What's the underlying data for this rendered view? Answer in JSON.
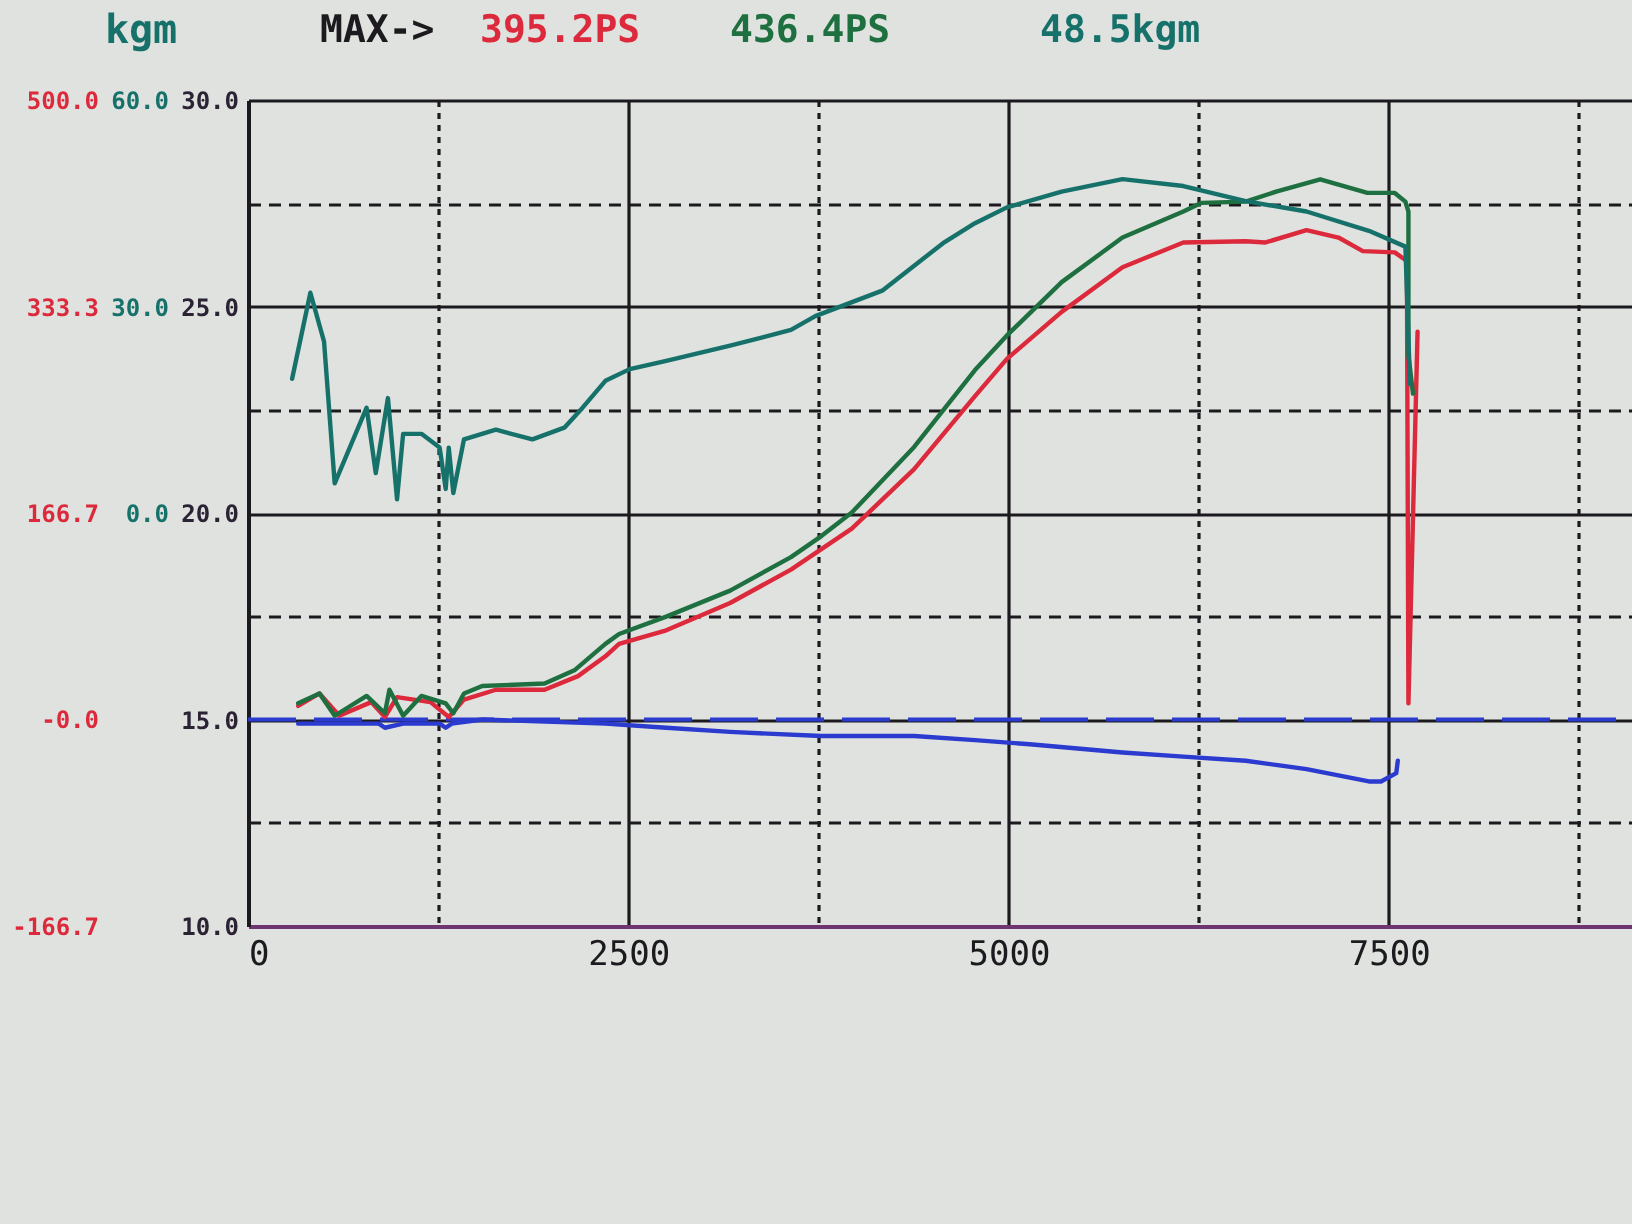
{
  "chart_data": {
    "type": "line",
    "annotations": [
      "MAX->",
      "395.2PS",
      "436.4PS",
      "48.5kgm"
    ],
    "y3label": "kgm",
    "xlim": [
      0,
      9100
    ],
    "xticks": [
      0,
      {
        "value": 1250,
        "label": null
      },
      2500,
      {
        "value": 3750,
        "label": null
      },
      5000,
      {
        "value": 6250,
        "label": null
      },
      7500,
      {
        "value": 8750,
        "label": null
      }
    ],
    "ylim": [
      10,
      30
    ],
    "yticks": [
      {
        "value": 10,
        "label": "10.0"
      },
      {
        "value": 12.5,
        "label": null
      },
      {
        "value": 15,
        "label": "15.0"
      },
      {
        "value": 17.5,
        "label": null
      },
      {
        "value": 20,
        "label": "20.0"
      },
      {
        "value": 22.5,
        "label": null
      },
      {
        "value": 25,
        "label": "25.0"
      },
      {
        "value": 27.5,
        "label": null
      },
      {
        "value": 30,
        "label": "30.0"
      }
    ],
    "y2lim": [
      -166.7,
      500
    ],
    "y2ticks": [
      {
        "value": -166.7,
        "label": "-166.7"
      },
      {
        "value": 0,
        "label": "-0.0"
      },
      {
        "value": 166.7,
        "label": "166.7"
      },
      {
        "value": 333.3,
        "label": "333.3"
      },
      {
        "value": 500,
        "label": "500.0"
      }
    ],
    "y3lim": [
      -60,
      60
    ],
    "y3ticks": [
      {
        "value": 0,
        "label": "0.0"
      },
      {
        "value": 30,
        "label": "30.0"
      },
      {
        "value": 60,
        "label": "60.0"
      }
    ],
    "grid": true,
    "ref_lines": [
      {
        "axis": "y",
        "value": 15,
        "color": "#2b3bd0",
        "line_style": "dashed"
      }
    ],
    "series": [
      {
        "color": "#dc2a3c",
        "axis": "y2",
        "x": [
          330,
          470,
          600,
          810,
          900,
          980,
          1200,
          1320,
          1420,
          1630,
          1950,
          2170,
          2350,
          2440,
          2750,
          3170,
          3570,
          3970,
          4380,
          4780,
          4990,
          5350,
          5750,
          6150,
          6560,
          6690,
          6960,
          7170,
          7330,
          7540,
          7620,
          7630,
          7690
        ],
        "values": [
          11,
          21,
          3,
          14,
          2,
          18,
          14,
          2,
          16,
          24,
          24,
          35,
          51,
          61,
          72,
          94,
          121,
          154,
          202,
          261,
          291,
          329,
          365,
          385,
          386,
          385,
          395,
          389,
          378,
          377,
          370,
          13,
          313
        ]
      },
      {
        "color": "#1f7040",
        "axis": "y2",
        "x": [
          330,
          470,
          570,
          780,
          900,
          930,
          1020,
          1140,
          1300,
          1350,
          1420,
          1540,
          1950,
          2150,
          2350,
          2440,
          2750,
          3170,
          3570,
          3770,
          3970,
          4380,
          4780,
          4990,
          5350,
          5750,
          6150,
          6270,
          6560,
          6760,
          7050,
          7360,
          7540,
          7610,
          7630,
          7630,
          7660
        ],
        "values": [
          13,
          21,
          3,
          19,
          5,
          24,
          3,
          19,
          13,
          5,
          21,
          27,
          29,
          40,
          61,
          69,
          83,
          104,
          131,
          148,
          167,
          220,
          282,
          310,
          353,
          389,
          410,
          417,
          418,
          426,
          436,
          425,
          425,
          418,
          410,
          294,
          263
        ]
      },
      {
        "color": "#17716b",
        "axis": "y3",
        "x": [
          290,
          410,
          500,
          570,
          780,
          840,
          920,
          980,
          1020,
          1140,
          1260,
          1300,
          1320,
          1350,
          1420,
          1630,
          1870,
          2080,
          2200,
          2350,
          2510,
          2750,
          3170,
          3570,
          3730,
          4170,
          4570,
          4780,
          4990,
          5350,
          5750,
          6150,
          6560,
          6960,
          7370,
          7610,
          7640
        ],
        "values": [
          19.5,
          32.0,
          24.9,
          4.3,
          15.3,
          5.8,
          16.7,
          2.0,
          11.5,
          11.5,
          9.5,
          3.5,
          9.5,
          2.9,
          10.7,
          12.1,
          10.7,
          12.4,
          15.3,
          19.2,
          20.9,
          22.1,
          24.3,
          26.6,
          28.6,
          32.3,
          39.2,
          42.1,
          44.4,
          46.7,
          48.5,
          47.5,
          45.3,
          43.8,
          41.0,
          38.7,
          18.7
        ]
      },
      {
        "color": "#2b3bd0",
        "axis": "y",
        "x": [
          330,
          860,
          900,
          1020,
          1260,
          1300,
          1340,
          1540,
          2350,
          2750,
          3170,
          3770,
          4380,
          4780,
          5140,
          5750,
          6150,
          6560,
          6960,
          7370,
          7450,
          7550,
          7560
        ],
        "values": [
          14.9,
          14.9,
          14.8,
          14.9,
          14.9,
          14.8,
          14.9,
          15.0,
          14.9,
          14.8,
          14.7,
          14.6,
          14.6,
          14.5,
          14.4,
          14.2,
          14.1,
          14.0,
          13.8,
          13.5,
          13.5,
          13.7,
          14.0
        ]
      }
    ]
  }
}
